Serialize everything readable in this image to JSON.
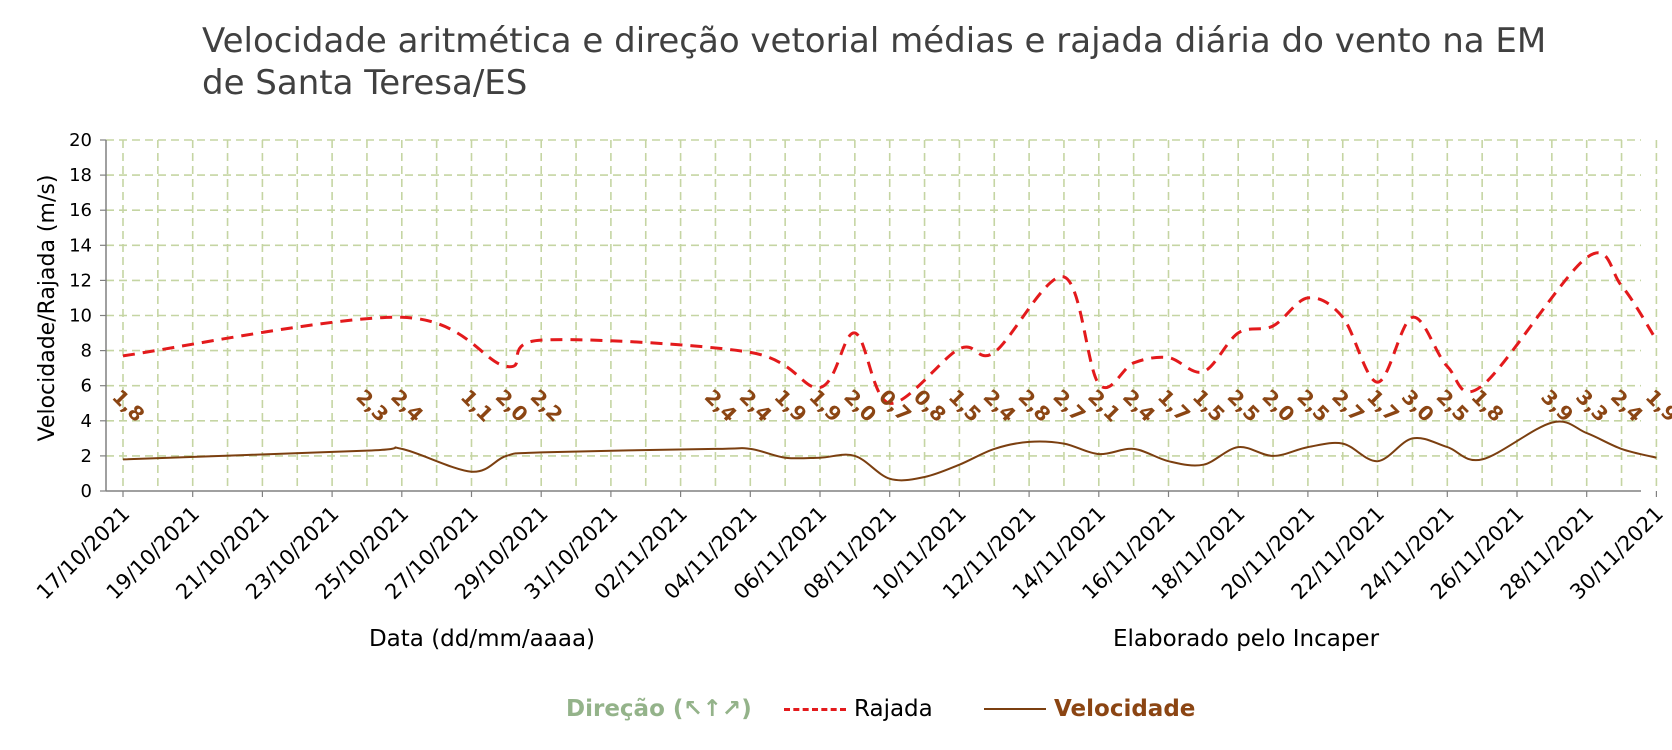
{
  "title": "Velocidade aritmética e direção vetorial médias e rajada diária do vento na EM de Santa Teresa/ES",
  "colors": {
    "rajada": "#e31a1c",
    "velocidade": "#7b3f10",
    "velocidade_label": "#8b4513",
    "direcao": "#94b38a",
    "grid": "#c5d5a3"
  },
  "legend": {
    "direcao": "Direção (↖↑↗)",
    "rajada": "Rajada",
    "velocidade": "Velocidade"
  },
  "chart_data": {
    "type": "line",
    "xlabel": "Data (dd/mm/aaaa)",
    "ylabel": "Velocidade/Rajada (m/s)",
    "credit": "Elaborado pelo Incaper",
    "ylim": [
      0,
      20
    ],
    "yticks": [
      0,
      2,
      4,
      6,
      8,
      10,
      12,
      14,
      16,
      18,
      20
    ],
    "grid": true,
    "legend_position": "bottom",
    "x_tick_labels": [
      "17/10/2021",
      "19/10/2021",
      "21/10/2021",
      "23/10/2021",
      "25/10/2021",
      "27/10/2021",
      "29/10/2021",
      "31/10/2021",
      "02/11/2021",
      "04/11/2021",
      "06/11/2021",
      "08/11/2021",
      "10/11/2021",
      "12/11/2021",
      "14/11/2021",
      "16/11/2021",
      "18/11/2021",
      "20/11/2021",
      "22/11/2021",
      "24/11/2021",
      "26/11/2021",
      "28/11/2021",
      "30/11/2021"
    ],
    "series": [
      {
        "name": "Rajada",
        "style": "dashed",
        "points": [
          [
            "17/10/2021",
            7.7
          ],
          [
            "25/10/2021",
            9.9
          ],
          [
            "28/10/2021",
            7.1
          ],
          [
            "29/10/2021",
            8.6
          ],
          [
            "04/11/2021",
            7.9
          ],
          [
            "06/11/2021",
            5.9
          ],
          [
            "07/11/2021",
            9.0
          ],
          [
            "08/11/2021",
            5.0
          ],
          [
            "10/11/2021",
            8.1
          ],
          [
            "11/11/2021",
            7.9
          ],
          [
            "13/11/2021",
            12.2
          ],
          [
            "14/11/2021",
            6.1
          ],
          [
            "15/11/2021",
            7.3
          ],
          [
            "16/11/2021",
            7.6
          ],
          [
            "17/11/2021",
            6.8
          ],
          [
            "18/11/2021",
            9.0
          ],
          [
            "19/11/2021",
            9.4
          ],
          [
            "20/11/2021",
            11.0
          ],
          [
            "21/11/2021",
            9.9
          ],
          [
            "22/11/2021",
            6.2
          ],
          [
            "23/11/2021",
            9.9
          ],
          [
            "24/11/2021",
            7.1
          ],
          [
            "25/11/2021",
            6.0
          ],
          [
            "28/11/2021",
            13.3
          ],
          [
            "29/11/2021",
            11.7
          ],
          [
            "30/11/2021",
            8.6
          ]
        ]
      },
      {
        "name": "Velocidade",
        "style": "solid",
        "points": [
          [
            "17/10/2021",
            1.8
          ],
          [
            "24/10/2021",
            2.3
          ],
          [
            "25/10/2021",
            2.4
          ],
          [
            "27/10/2021",
            1.1
          ],
          [
            "28/10/2021",
            2.0
          ],
          [
            "29/10/2021",
            2.2
          ],
          [
            "03/11/2021",
            2.4
          ],
          [
            "04/11/2021",
            2.4
          ],
          [
            "05/11/2021",
            1.9
          ],
          [
            "06/11/2021",
            1.9
          ],
          [
            "07/11/2021",
            2.0
          ],
          [
            "08/11/2021",
            0.7
          ],
          [
            "09/11/2021",
            0.8
          ],
          [
            "10/11/2021",
            1.5
          ],
          [
            "11/11/2021",
            2.4
          ],
          [
            "12/11/2021",
            2.8
          ],
          [
            "13/11/2021",
            2.7
          ],
          [
            "14/11/2021",
            2.1
          ],
          [
            "15/11/2021",
            2.4
          ],
          [
            "16/11/2021",
            1.7
          ],
          [
            "17/11/2021",
            1.5
          ],
          [
            "18/11/2021",
            2.5
          ],
          [
            "19/11/2021",
            2.0
          ],
          [
            "20/11/2021",
            2.5
          ],
          [
            "21/11/2021",
            2.7
          ],
          [
            "22/11/2021",
            1.7
          ],
          [
            "23/11/2021",
            3.0
          ],
          [
            "24/11/2021",
            2.5
          ],
          [
            "25/11/2021",
            1.8
          ],
          [
            "27/11/2021",
            3.9
          ],
          [
            "28/11/2021",
            3.3
          ],
          [
            "29/11/2021",
            2.4
          ],
          [
            "30/11/2021",
            1.9
          ]
        ],
        "data_labels": [
          "1,8",
          "2,3",
          "2,4",
          "1,1",
          "2,0",
          "2,2",
          "2,4",
          "2,4",
          "1,9",
          "1,9",
          "2,0",
          "0,7",
          "0,8",
          "1,5",
          "2,4",
          "2,8",
          "2,7",
          "2,1",
          "2,4",
          "1,7",
          "1,5",
          "2,5",
          "2,0",
          "2,5",
          "2,7",
          "1,7",
          "3,0",
          "2,5",
          "1,8",
          "3,9",
          "3,3",
          "2,4",
          "1,9"
        ]
      }
    ]
  }
}
